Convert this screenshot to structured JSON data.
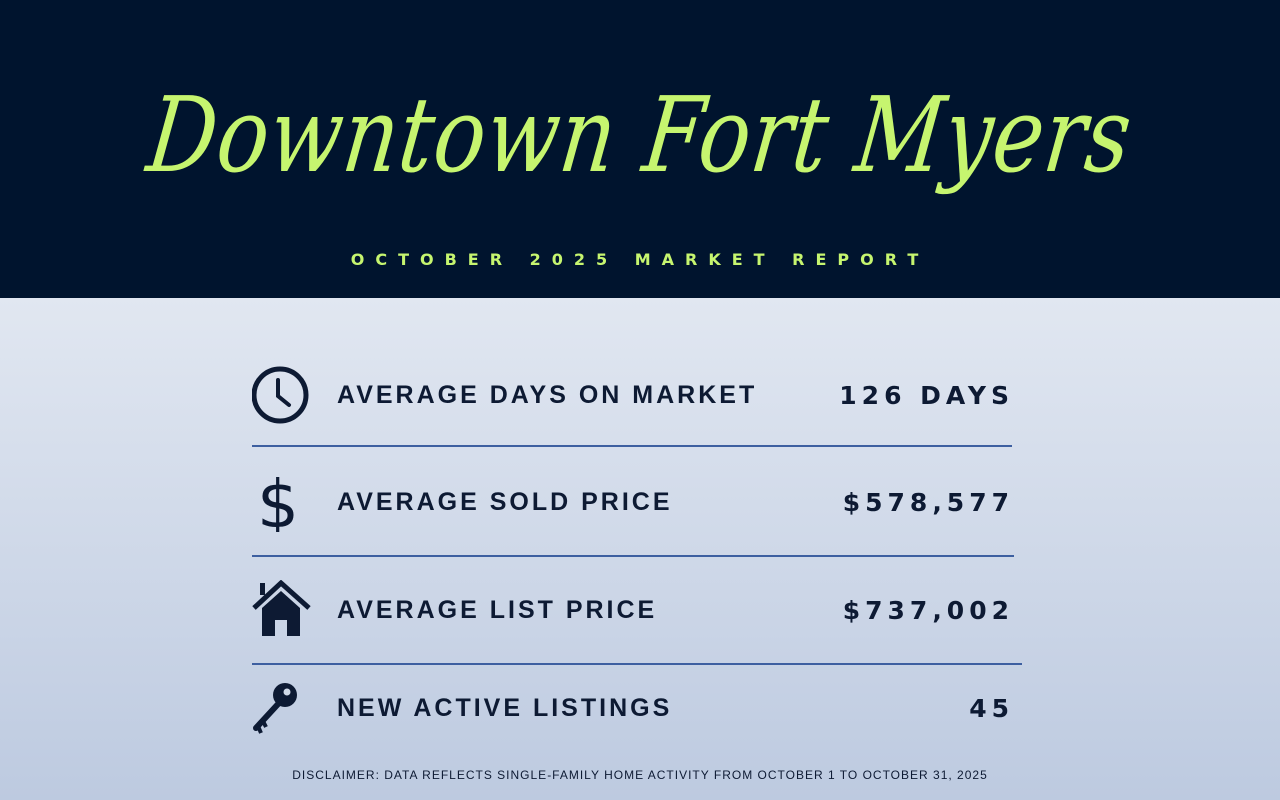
{
  "header": {
    "title": "Downtown Fort Myers",
    "subtitle": "OCTOBER 2025 MARKET REPORT"
  },
  "stats": [
    {
      "icon": "clock-icon",
      "label": "AVERAGE DAYS ON MARKET",
      "value": "126 DAYS"
    },
    {
      "icon": "dollar-icon",
      "label": "AVERAGE SOLD PRICE",
      "value": "$578,577"
    },
    {
      "icon": "house-icon",
      "label": "AVERAGE LIST PRICE",
      "value": "$737,002"
    },
    {
      "icon": "key-icon",
      "label": "NEW ACTIVE LISTINGS",
      "value": "45"
    }
  ],
  "disclaimer": "DISCLAIMER: DATA REFLECTS SINGLE-FAMILY HOME ACTIVITY FROM OCTOBER 1 TO OCTOBER 31, 2025",
  "colors": {
    "header_bg": "#00142e",
    "accent": "#c6f56f",
    "text": "#0d1a33",
    "divider": "#3d5fa0"
  }
}
